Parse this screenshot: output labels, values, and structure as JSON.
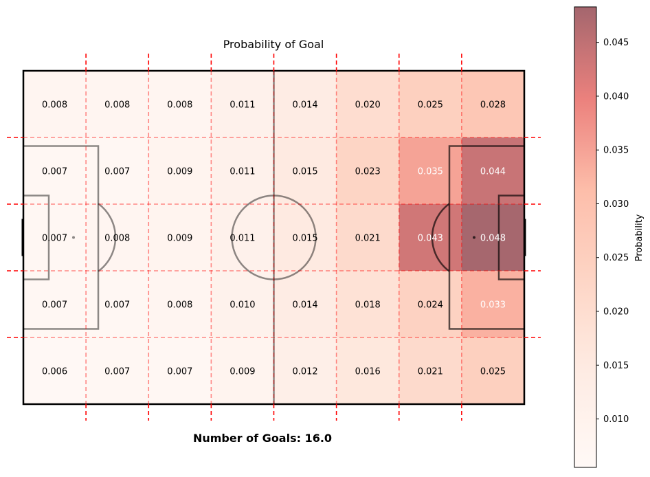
{
  "chart_data": {
    "type": "heatmap",
    "title": "Probability of Goal",
    "subtitle": "Number of Goals: 16.0",
    "columns": 8,
    "rows": 5,
    "values": [
      [
        0.008,
        0.008,
        0.008,
        0.011,
        0.014,
        0.02,
        0.025,
        0.028
      ],
      [
        0.007,
        0.007,
        0.009,
        0.011,
        0.015,
        0.023,
        0.035,
        0.044
      ],
      [
        0.007,
        0.008,
        0.009,
        0.011,
        0.015,
        0.021,
        0.043,
        0.048
      ],
      [
        0.007,
        0.007,
        0.008,
        0.01,
        0.014,
        0.018,
        0.024,
        0.033
      ],
      [
        0.006,
        0.007,
        0.007,
        0.009,
        0.012,
        0.016,
        0.021,
        0.025
      ]
    ],
    "value_format": 3,
    "colorbar": {
      "label": "Probability",
      "range": [
        0.0055,
        0.0483
      ],
      "ticks": [
        "0.010",
        "0.015",
        "0.020",
        "0.025",
        "0.030",
        "0.035",
        "0.040",
        "0.045"
      ],
      "tick_values": [
        0.01,
        0.015,
        0.02,
        0.025,
        0.03,
        0.035,
        0.04,
        0.045
      ]
    },
    "colormap": [
      "#fff5f0",
      "#fee0d2",
      "#fcbba1",
      "#fc9272",
      "#de2d26",
      "#67000d"
    ],
    "cell_alpha": 0.6,
    "pitch_line_color": "#000000",
    "grid_line_color": "#ff0000",
    "grid": true
  }
}
